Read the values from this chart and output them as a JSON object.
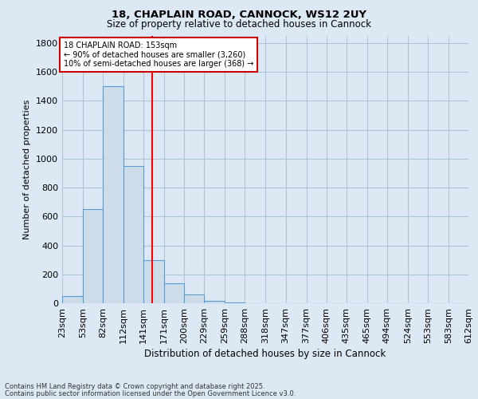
{
  "title_line1": "18, CHAPLAIN ROAD, CANNOCK, WS12 2UY",
  "title_line2": "Size of property relative to detached houses in Cannock",
  "xlabel": "Distribution of detached houses by size in Cannock",
  "ylabel": "Number of detached properties",
  "footnote1": "Contains HM Land Registry data © Crown copyright and database right 2025.",
  "footnote2": "Contains public sector information licensed under the Open Government Licence v3.0.",
  "annotation_line1": "18 CHAPLAIN ROAD: 153sqm",
  "annotation_line2": "← 90% of detached houses are smaller (3,260)",
  "annotation_line3": "10% of semi-detached houses are larger (368) →",
  "bar_edges": [
    23,
    53,
    82,
    112,
    141,
    171,
    200,
    229,
    259,
    288,
    318,
    347,
    377,
    406,
    435,
    465,
    494,
    524,
    553,
    583,
    612
  ],
  "bar_heights": [
    50,
    650,
    1500,
    950,
    300,
    140,
    60,
    15,
    5,
    2,
    2,
    1,
    1,
    0,
    0,
    0,
    0,
    0,
    0,
    0
  ],
  "bar_color": "#ccdce9",
  "bar_edgecolor": "#5b9bd5",
  "red_line_x": 153,
  "ylim": [
    0,
    1850
  ],
  "yticks": [
    0,
    200,
    400,
    600,
    800,
    1000,
    1200,
    1400,
    1600,
    1800
  ],
  "bg_color": "#dce9f5",
  "plot_bg_color": "#dce9f5",
  "grid_color": "#b0c4d8",
  "annotation_box_edgecolor": "#cc0000",
  "tick_labels": [
    "23sqm",
    "53sqm",
    "82sqm",
    "112sqm",
    "141sqm",
    "171sqm",
    "200sqm",
    "229sqm",
    "259sqm",
    "288sqm",
    "318sqm",
    "347sqm",
    "377sqm",
    "406sqm",
    "435sqm",
    "465sqm",
    "494sqm",
    "524sqm",
    "553sqm",
    "583sqm",
    "612sqm"
  ]
}
